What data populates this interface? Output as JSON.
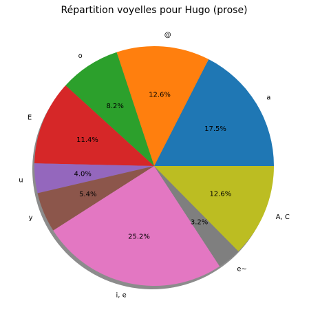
{
  "chart_data": {
    "type": "pie",
    "title": "Répartition voyelles pour Hugo (prose)",
    "slices": [
      {
        "label": "a",
        "pct_label": "17.5%",
        "value": 17.5,
        "color": "#1f77b4"
      },
      {
        "label": "@",
        "pct_label": "12.6%",
        "value": 12.6,
        "color": "#ff7f0e"
      },
      {
        "label": "o",
        "pct_label": "8.2%",
        "value": 8.2,
        "color": "#2ca02c"
      },
      {
        "label": "E",
        "pct_label": "11.4%",
        "value": 11.4,
        "color": "#d62728"
      },
      {
        "label": "u",
        "pct_label": "4.0%",
        "value": 4.0,
        "color": "#9467bd"
      },
      {
        "label": "y",
        "pct_label": "5.4%",
        "value": 5.4,
        "color": "#8c564b"
      },
      {
        "label": "i, e",
        "pct_label": "25.2%",
        "value": 25.2,
        "color": "#e377c2"
      },
      {
        "label": "e~",
        "pct_label": "3.2%",
        "value": 3.2,
        "color": "#7f7f7f"
      },
      {
        "label": "A, C",
        "pct_label": "12.6%",
        "value": 12.6,
        "color": "#bcbd22"
      }
    ],
    "start_angle_deg": 0,
    "direction": "counterclockwise",
    "shadow": true
  }
}
